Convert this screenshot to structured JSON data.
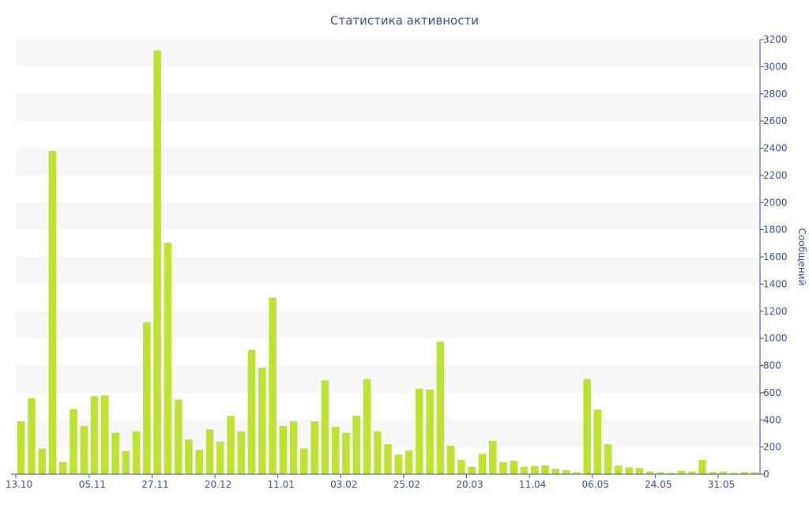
{
  "chart_data": {
    "type": "bar",
    "title": "Статистика активности",
    "ylabel": "Сообщений",
    "ylim": [
      0,
      3200
    ],
    "ytick_step": 200,
    "grid": "alternating horizontal bands",
    "y_axis_position": "right",
    "x_tick_labels": [
      "13.10",
      "05.11",
      "27.11",
      "20.12",
      "11.01",
      "03.02",
      "25.02",
      "20.03",
      "11.04",
      "06.05",
      "24.05",
      "31.05"
    ],
    "x_tick_bar_index": [
      0,
      7,
      13,
      19,
      25,
      31,
      37,
      43,
      49,
      55,
      61,
      67
    ],
    "values": [
      390,
      560,
      190,
      2380,
      90,
      480,
      355,
      575,
      580,
      305,
      170,
      315,
      1120,
      3120,
      1705,
      550,
      255,
      180,
      330,
      240,
      430,
      315,
      915,
      785,
      1300,
      355,
      390,
      190,
      390,
      690,
      350,
      305,
      430,
      700,
      315,
      220,
      145,
      175,
      630,
      625,
      975,
      210,
      105,
      55,
      150,
      245,
      90,
      100,
      55,
      60,
      65,
      40,
      30,
      15,
      700,
      475,
      220,
      65,
      50,
      45,
      20,
      15,
      10,
      25,
      20,
      105,
      15,
      20,
      10,
      15,
      15
    ],
    "colors": {
      "bar": "#bde232",
      "text": "#3b4d8a",
      "band": "#f7f7f7",
      "axis": "#3b4d8a"
    }
  }
}
